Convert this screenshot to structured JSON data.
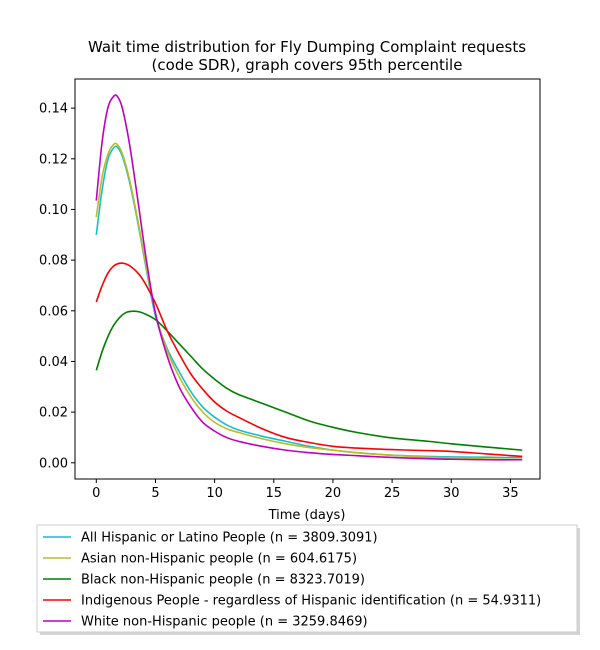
{
  "chart_data": {
    "type": "line",
    "title": "Wait time distribution  for Fly Dumping Complaint  requests",
    "subtitle": "(code SDR), graph covers 95th percentile",
    "xlabel": "Time (days)",
    "ylabel": "",
    "xlim": [
      -1.8,
      37.5
    ],
    "ylim": [
      -0.0064,
      0.1515
    ],
    "xticks": [
      0,
      5,
      10,
      15,
      20,
      25,
      30,
      35
    ],
    "xtick_labels": [
      "0",
      "5",
      "10",
      "15",
      "20",
      "25",
      "30",
      "35"
    ],
    "yticks": [
      0.0,
      0.02,
      0.04,
      0.06,
      0.08,
      0.1,
      0.12,
      0.14
    ],
    "ytick_labels": [
      "0.00",
      "0.02",
      "0.04",
      "0.06",
      "0.08",
      "0.10",
      "0.12",
      "0.14"
    ],
    "grid": false,
    "legend_position": "below plot",
    "series": [
      {
        "name": "All Hispanic or Latino People (n = 3809.3091)",
        "color": "#17becf",
        "x": [
          0,
          0.5,
          1,
          1.5,
          1.8,
          2.2,
          2.8,
          3.5,
          4.2,
          5,
          6,
          7,
          8,
          9,
          10,
          11,
          12,
          14,
          16,
          18,
          20,
          22,
          25,
          28,
          30,
          33,
          36
        ],
        "y": [
          0.09,
          0.108,
          0.12,
          0.1245,
          0.1245,
          0.121,
          0.111,
          0.095,
          0.077,
          0.058,
          0.045,
          0.036,
          0.028,
          0.022,
          0.018,
          0.015,
          0.013,
          0.0105,
          0.0085,
          0.0065,
          0.005,
          0.004,
          0.003,
          0.0025,
          0.0023,
          0.0022,
          0.002
        ]
      },
      {
        "name": "Asian non-Hispanic people (n = 604.6175)",
        "color": "#bcbd22",
        "x": [
          0,
          0.5,
          1,
          1.5,
          1.8,
          2.2,
          2.8,
          3.5,
          4.2,
          5,
          6,
          7,
          8,
          9,
          10,
          11,
          12,
          14,
          16,
          18,
          20,
          22,
          25,
          28,
          30,
          33,
          36
        ],
        "y": [
          0.097,
          0.113,
          0.122,
          0.1258,
          0.1255,
          0.122,
          0.112,
          0.096,
          0.078,
          0.059,
          0.044,
          0.034,
          0.026,
          0.02,
          0.016,
          0.0135,
          0.012,
          0.0095,
          0.0075,
          0.006,
          0.005,
          0.004,
          0.003,
          0.0022,
          0.002,
          0.0015,
          0.0012
        ]
      },
      {
        "name": "Black non-Hispanic people (n = 8323.7019)",
        "color": "#008000",
        "x": [
          0,
          0.5,
          1,
          1.5,
          2,
          2.5,
          3,
          3.5,
          4,
          5,
          6,
          7,
          8,
          9,
          10,
          11,
          12,
          14,
          16,
          18,
          20,
          22,
          25,
          28,
          30,
          33,
          36
        ],
        "y": [
          0.0365,
          0.044,
          0.05,
          0.0545,
          0.0575,
          0.0593,
          0.0598,
          0.0597,
          0.059,
          0.0565,
          0.052,
          0.047,
          0.042,
          0.037,
          0.033,
          0.0295,
          0.027,
          0.0235,
          0.02,
          0.0165,
          0.014,
          0.012,
          0.0098,
          0.0085,
          0.0075,
          0.0062,
          0.005
        ]
      },
      {
        "name": "Indigenous People - regardless of Hispanic identification (n = 54.9311)",
        "color": "#ff0000",
        "x": [
          0,
          0.5,
          1,
          1.5,
          2,
          2.5,
          3,
          3.5,
          4,
          5,
          6,
          7,
          8,
          9,
          10,
          11,
          12,
          14,
          16,
          18,
          20,
          22,
          25,
          28,
          30,
          33,
          36
        ],
        "y": [
          0.0635,
          0.07,
          0.075,
          0.0778,
          0.0788,
          0.0785,
          0.0772,
          0.075,
          0.0718,
          0.063,
          0.052,
          0.043,
          0.035,
          0.029,
          0.024,
          0.0205,
          0.018,
          0.0135,
          0.01,
          0.008,
          0.0065,
          0.0058,
          0.0052,
          0.0048,
          0.0045,
          0.0035,
          0.0025
        ]
      },
      {
        "name": "White non-Hispanic people (n = 3259.8469)",
        "color": "#bf00bf",
        "x": [
          0,
          0.5,
          1,
          1.5,
          1.8,
          2.2,
          2.8,
          3.5,
          4.2,
          5,
          6,
          7,
          8,
          9,
          10,
          11,
          12,
          14,
          16,
          18,
          20,
          22,
          25,
          28,
          30,
          33,
          36
        ],
        "y": [
          0.1035,
          0.127,
          0.1405,
          0.1448,
          0.1445,
          0.14,
          0.126,
          0.104,
          0.081,
          0.059,
          0.042,
          0.03,
          0.022,
          0.016,
          0.0125,
          0.01,
          0.0085,
          0.0065,
          0.005,
          0.004,
          0.0033,
          0.0028,
          0.0021,
          0.0016,
          0.0014,
          0.0012,
          0.0012
        ]
      }
    ]
  }
}
